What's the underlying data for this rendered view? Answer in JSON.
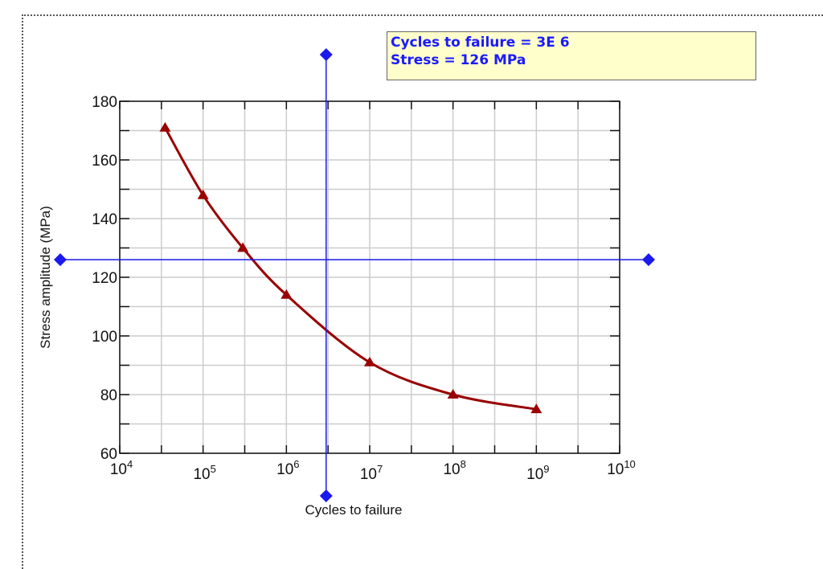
{
  "readout": {
    "cycles_line": "Cycles to failure = 3E 6",
    "stress_line": "Stress = 126 MPa"
  },
  "colors": {
    "curve": "#990000",
    "crosshair": "#1a1aee",
    "grid": "#cccccc",
    "readout_bg": "#ffffcc",
    "readout_text": "#1a1aff"
  },
  "chart_data": {
    "type": "line",
    "xlabel": "Cycles to failure",
    "ylabel": "Stress amplitude (MPa)",
    "x_scale": "log10",
    "xlim": [
      10000,
      10000000000
    ],
    "ylim": [
      60,
      180
    ],
    "x_ticks": [
      {
        "base": "10",
        "exp": "4",
        "value": 10000
      },
      {
        "base": "10",
        "exp": "5",
        "value": 100000
      },
      {
        "base": "10",
        "exp": "6",
        "value": 1000000
      },
      {
        "base": "10",
        "exp": "7",
        "value": 10000000
      },
      {
        "base": "10",
        "exp": "8",
        "value": 100000000
      },
      {
        "base": "10",
        "exp": "9",
        "value": 1000000000
      },
      {
        "base": "10",
        "exp": "10",
        "value": 10000000000
      }
    ],
    "y_ticks": [
      "60",
      "80",
      "100",
      "120",
      "140",
      "160",
      "180"
    ],
    "grid": true,
    "series": [
      {
        "marker": "triangle",
        "points": [
          {
            "x": 35000,
            "y": 171
          },
          {
            "x": 100000,
            "y": 148
          },
          {
            "x": 300000,
            "y": 130
          },
          {
            "x": 1000000,
            "y": 114
          },
          {
            "x": 10000000,
            "y": 91
          },
          {
            "x": 100000000,
            "y": 80
          },
          {
            "x": 1000000000,
            "y": 75
          }
        ]
      }
    ],
    "crosshair": {
      "x": 3000000,
      "y": 126
    }
  }
}
